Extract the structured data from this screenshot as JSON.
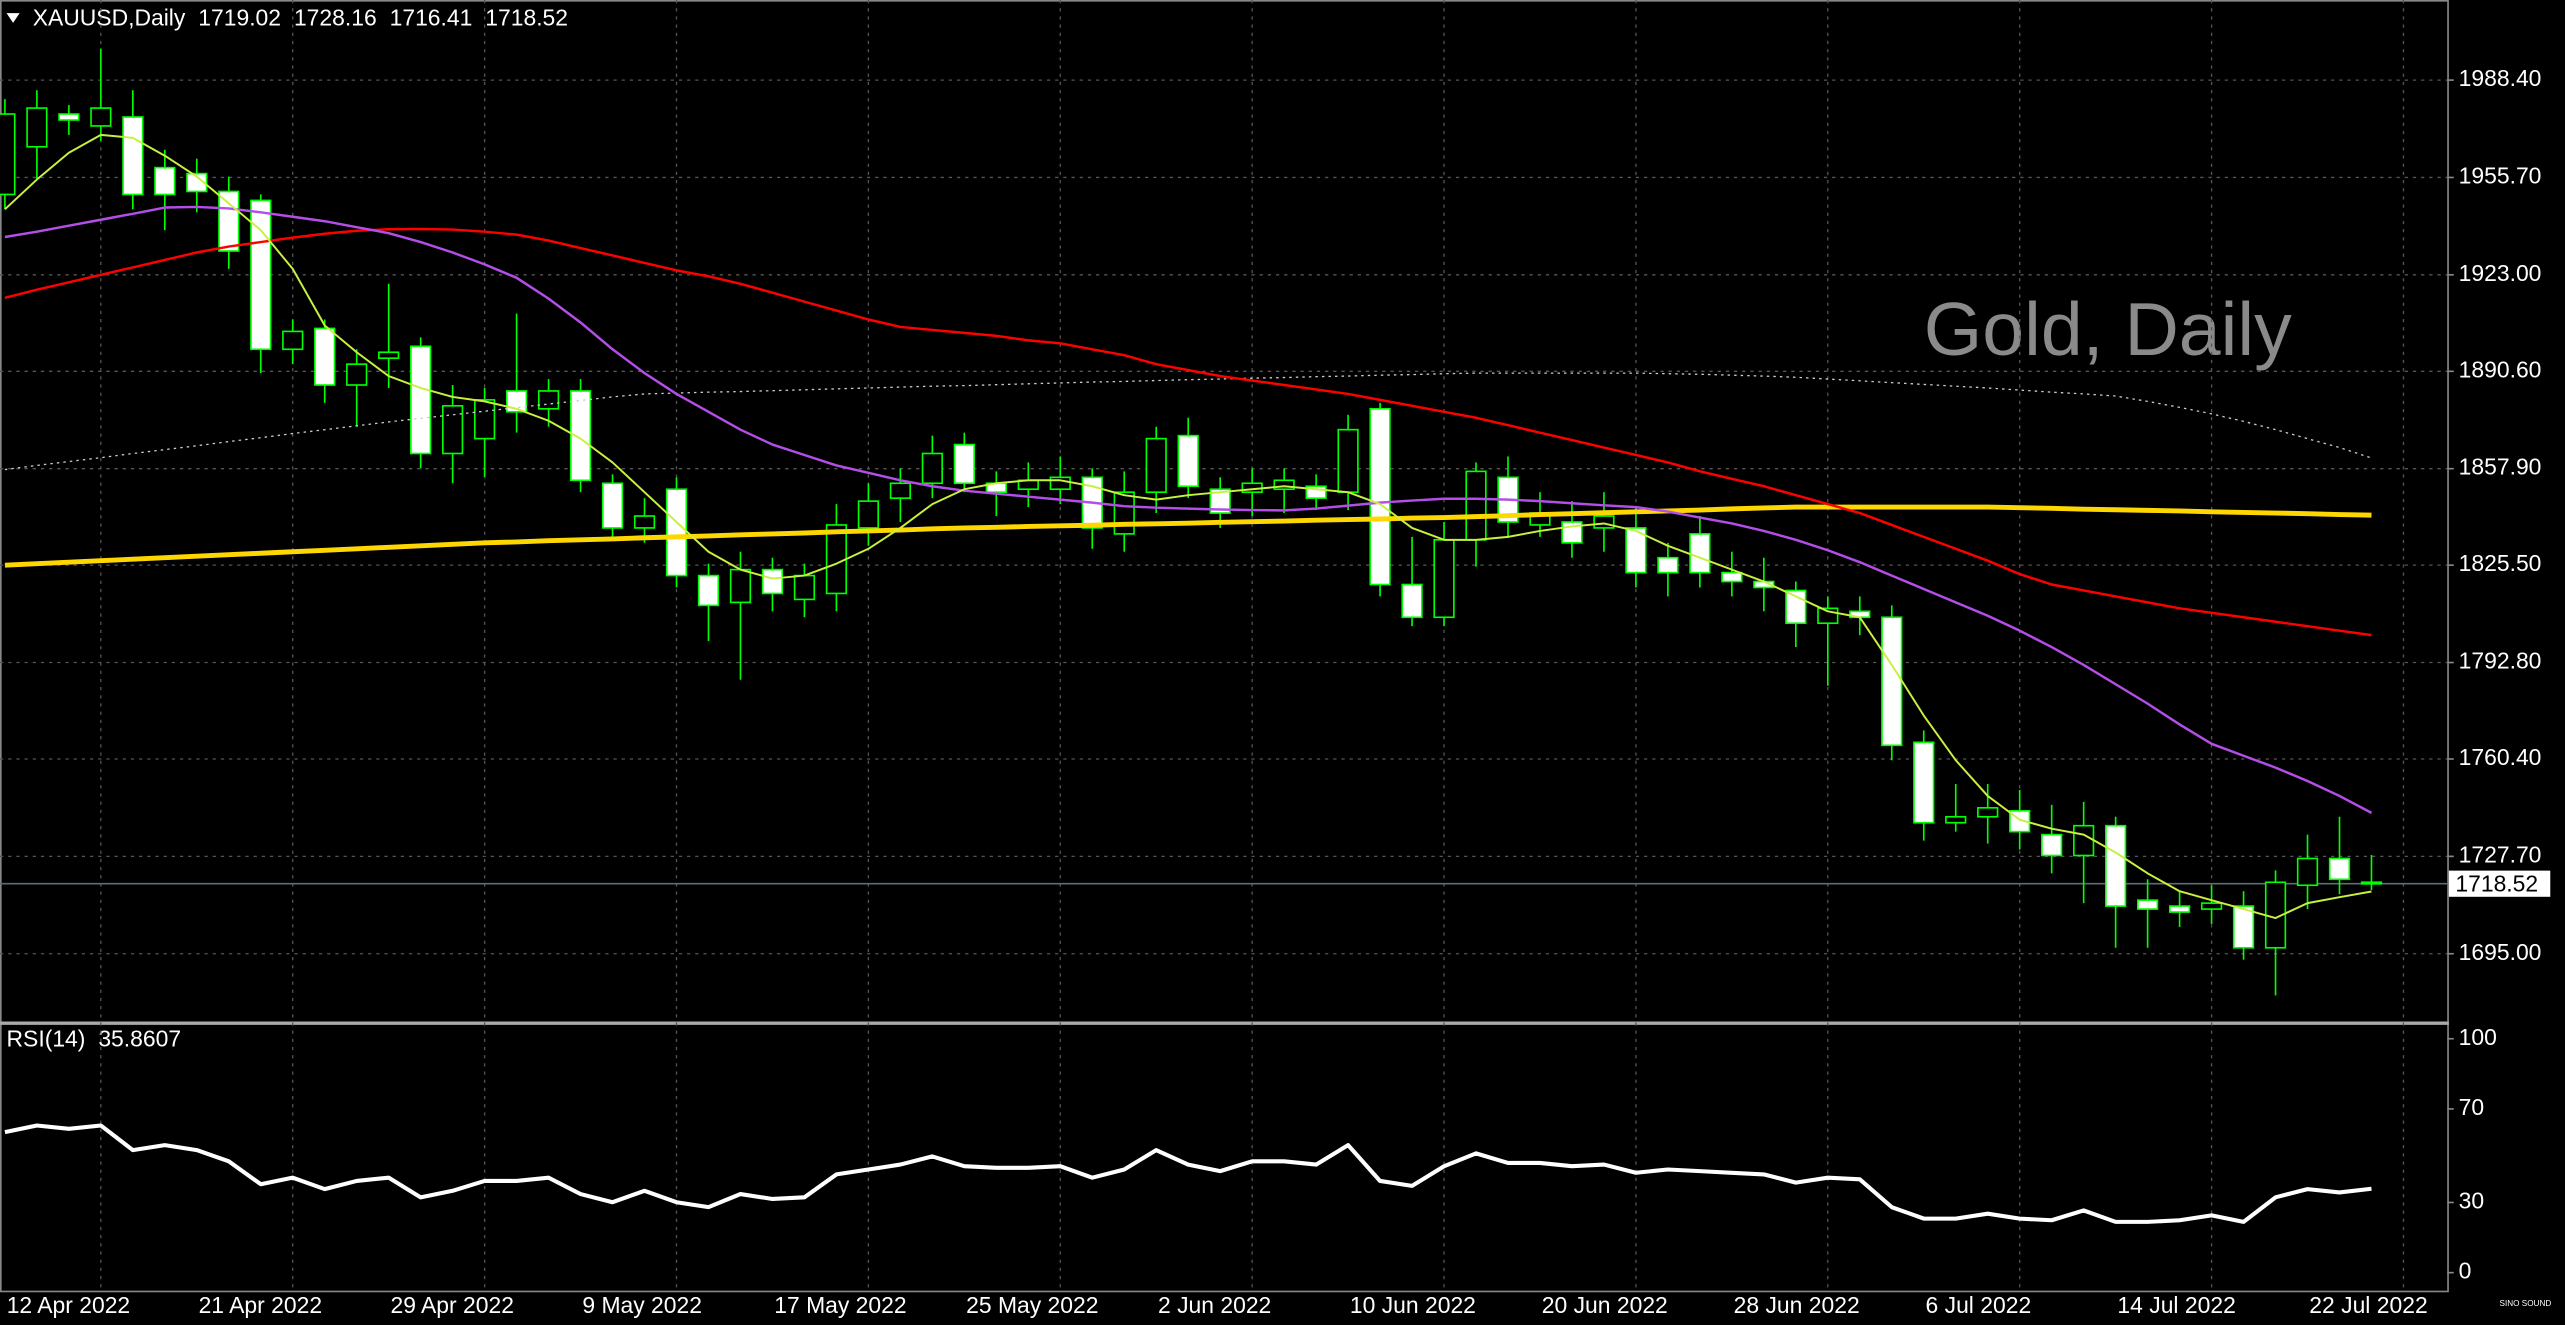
{
  "chart_data": [
    {
      "type": "candlestick",
      "title": "XAUUSD,Daily",
      "watermark": "Gold, Daily",
      "logo": "SINO SOUND",
      "categories": [
        null,
        null,
        "12 Apr 2022",
        null,
        null,
        null,
        null,
        null,
        "21 Apr 2022",
        null,
        null,
        null,
        null,
        null,
        "29 Apr 2022",
        null,
        null,
        null,
        null,
        null,
        "9 May 2022",
        null,
        null,
        null,
        null,
        null,
        "17 May 2022",
        null,
        null,
        null,
        null,
        null,
        "25 May 2022",
        null,
        null,
        null,
        null,
        null,
        "2 Jun 2022",
        null,
        null,
        null,
        null,
        null,
        "10 Jun 2022",
        null,
        null,
        null,
        null,
        null,
        "20 Jun 2022",
        null,
        null,
        null,
        null,
        null,
        "28 Jun 2022",
        null,
        null,
        null,
        null,
        null,
        "6 Jul 2022",
        null,
        null,
        null,
        null,
        null,
        "14 Jul 2022",
        null,
        null,
        null,
        null,
        null,
        "22 Jul 2022"
      ],
      "open": [
        1950,
        1966,
        1977,
        1973,
        1976,
        1959,
        1957,
        1951,
        1948,
        1898,
        1905,
        1886,
        1895,
        1899,
        1863,
        1868,
        1884,
        1878,
        1884,
        1853,
        1838,
        1851,
        1822,
        1813,
        1824,
        1814,
        1816,
        1838,
        1848,
        1853,
        1866,
        1853,
        1851,
        1851,
        1855,
        1836,
        1850,
        1869,
        1851,
        1850,
        1851,
        1852,
        1850,
        1878,
        1819,
        1808,
        1834,
        1855,
        1839,
        1840,
        1838,
        1838,
        1828,
        1836,
        1823,
        1820,
        1817,
        1806,
        1810,
        1808,
        1766,
        1739,
        1741,
        1743,
        1735,
        1728,
        1738,
        1713,
        1711,
        1710,
        1711,
        1697,
        1718,
        1727,
        1719.02
      ],
      "high": [
        1982,
        1985,
        1980,
        1999,
        1985,
        1965,
        1962,
        1956,
        1950,
        1908,
        1908,
        1898,
        1920,
        1902,
        1886,
        1885,
        1910,
        1888,
        1888,
        1856,
        1848,
        1855,
        1826,
        1830,
        1828,
        1826,
        1846,
        1853,
        1858,
        1869,
        1870,
        1857,
        1860,
        1862,
        1858,
        1857,
        1872,
        1875,
        1855,
        1858,
        1858,
        1856,
        1876,
        1880,
        1835,
        1840,
        1860,
        1862,
        1850,
        1847,
        1850,
        1845,
        1833,
        1842,
        1830,
        1828,
        1820,
        1815,
        1815,
        1812,
        1770,
        1752,
        1752,
        1750,
        1745,
        1746,
        1741,
        1720,
        1716,
        1718,
        1716,
        1723,
        1735,
        1741,
        1728.16
      ],
      "low": [
        1945,
        1955,
        1970,
        1968,
        1945,
        1938,
        1944,
        1925,
        1890,
        1893,
        1880,
        1872,
        1885,
        1858,
        1853,
        1855,
        1870,
        1872,
        1850,
        1835,
        1833,
        1818,
        1800,
        1787,
        1810,
        1808,
        1810,
        1832,
        1840,
        1848,
        1850,
        1842,
        1845,
        1846,
        1831,
        1830,
        1843,
        1848,
        1838,
        1842,
        1843,
        1844,
        1844,
        1815,
        1805,
        1805,
        1825,
        1835,
        1835,
        1828,
        1830,
        1818,
        1815,
        1818,
        1815,
        1810,
        1798,
        1785,
        1802,
        1760,
        1733,
        1736,
        1732,
        1730,
        1722,
        1712,
        1697,
        1697,
        1704,
        1705,
        1693,
        1681,
        1710,
        1715,
        1716.41
      ],
      "close": [
        1977,
        1979,
        1975,
        1979,
        1950,
        1950,
        1951,
        1931,
        1898,
        1904,
        1886,
        1893,
        1897,
        1863,
        1879,
        1881,
        1877,
        1884,
        1854,
        1838,
        1842,
        1822,
        1812,
        1824,
        1816,
        1822,
        1839,
        1847,
        1853,
        1863,
        1853,
        1850,
        1854,
        1855,
        1838,
        1850,
        1868,
        1852,
        1843,
        1853,
        1854,
        1848,
        1871,
        1819,
        1808,
        1834,
        1857,
        1840,
        1843,
        1833,
        1842,
        1823,
        1823,
        1823,
        1820,
        1818,
        1806,
        1811,
        1808,
        1765,
        1739,
        1741,
        1744,
        1736,
        1728,
        1738,
        1711,
        1710,
        1709,
        1712,
        1697,
        1719,
        1727,
        1720,
        1718.52
      ],
      "up_color": "#000000",
      "down_color": "#ffffff",
      "wick_color": "#00ff00",
      "price_line_color": "#5a6e78",
      "series": [
        {
          "color": "#cccccc",
          "width": 0.8,
          "dash": true,
          "values": [
            1857.6,
            1859,
            1860.3,
            1861.6,
            1863,
            1864.3,
            1865.6,
            1867,
            1868.3,
            1869.7,
            1871,
            1872.3,
            1873.6,
            1874.8,
            1876,
            1877.2,
            1878.4,
            1879.6,
            1880.8,
            1882,
            1883,
            1883.3,
            1883.6,
            1883.8,
            1884.1,
            1884.4,
            1884.7,
            1885,
            1885.3,
            1885.6,
            1885.8,
            1886.1,
            1886.4,
            1886.7,
            1887,
            1887.2,
            1887.5,
            1887.8,
            1888,
            1888.3,
            1888.5,
            1888.8,
            1889,
            1889.3,
            1889.5,
            1889.8,
            1890,
            1890,
            1890,
            1890,
            1890,
            1890,
            1889.8,
            1889.6,
            1889.3,
            1889,
            1888.6,
            1888,
            1887.4,
            1886.8,
            1886.2,
            1885.6,
            1885,
            1884.3,
            1883.6,
            1883,
            1882.3,
            1880.5,
            1878.5,
            1876.3,
            1873.8,
            1871,
            1868,
            1865,
            1861.5
          ]
        },
        {
          "color": "#ffd700",
          "width": 3,
          "dash": false,
          "values": [
            1825.5,
            1826,
            1826.5,
            1827,
            1827.5,
            1828,
            1828.5,
            1829,
            1829.5,
            1830,
            1830.5,
            1831,
            1831.5,
            1832,
            1832.5,
            1833,
            1833.3,
            1833.7,
            1834,
            1834.3,
            1834.7,
            1835,
            1835.3,
            1835.7,
            1836,
            1836.3,
            1836.7,
            1837,
            1837.3,
            1837.7,
            1838,
            1838.2,
            1838.5,
            1838.7,
            1838.9,
            1839.2,
            1839.4,
            1839.6,
            1839.9,
            1840.1,
            1840.3,
            1840.6,
            1840.8,
            1841,
            1841.3,
            1841.5,
            1841.8,
            1842.1,
            1842.5,
            1842.8,
            1843.1,
            1843.4,
            1843.7,
            1844,
            1844.4,
            1844.7,
            1845,
            1845,
            1845,
            1845,
            1845,
            1845,
            1845,
            1844.8,
            1844.6,
            1844.3,
            1844.1,
            1843.9,
            1843.7,
            1843.4,
            1843.2,
            1843,
            1842.8,
            1842.5,
            1842.3
          ]
        },
        {
          "color": "#ff0000",
          "width": 1.5,
          "dash": false,
          "values": [
            1915.3,
            1918,
            1920.5,
            1923,
            1925.5,
            1928,
            1930.5,
            1932.5,
            1934,
            1935.5,
            1936.8,
            1937.8,
            1938.3,
            1938.4,
            1938.2,
            1937.5,
            1936.5,
            1934.5,
            1932,
            1929.5,
            1927,
            1924.5,
            1922.5,
            1920,
            1917,
            1914,
            1911,
            1908,
            1905.5,
            1904.5,
            1903.5,
            1902.5,
            1901,
            1900,
            1898,
            1896,
            1893,
            1891,
            1889,
            1887.5,
            1886,
            1884.5,
            1883,
            1881,
            1879,
            1877,
            1875,
            1872.5,
            1870,
            1867.5,
            1865,
            1862.5,
            1860,
            1857,
            1854.5,
            1852,
            1849,
            1846,
            1843,
            1839,
            1835,
            1831,
            1827,
            1822.5,
            1819,
            1817,
            1815,
            1813,
            1811,
            1809.5,
            1808,
            1806.5,
            1805,
            1803.5,
            1802
          ]
        },
        {
          "color": "#b44ee8",
          "width": 1.5,
          "dash": false,
          "values": [
            1935.7,
            1937.5,
            1939.5,
            1941.5,
            1943.5,
            1945.6,
            1945.8,
            1945.3,
            1944,
            1942.5,
            1941,
            1939,
            1937,
            1934,
            1930.5,
            1926.5,
            1922,
            1915,
            1907,
            1898,
            1890,
            1883,
            1877,
            1871,
            1866,
            1862.5,
            1859,
            1856.5,
            1854,
            1852,
            1850.5,
            1849.5,
            1848.5,
            1847.5,
            1846.5,
            1845.3,
            1844.8,
            1844.5,
            1844.2,
            1844,
            1843.9,
            1844.5,
            1845.5,
            1846.5,
            1847.2,
            1847.8,
            1847.8,
            1847.5,
            1847,
            1846.3,
            1845.6,
            1845,
            1843.5,
            1841.5,
            1839.5,
            1837,
            1834,
            1830.5,
            1826.5,
            1822,
            1817.5,
            1813,
            1808.5,
            1803.5,
            1798,
            1792,
            1785.5,
            1779,
            1772,
            1765.5,
            1761.5,
            1757.5,
            1753,
            1748,
            1742.3
          ]
        },
        {
          "color": "#c8f040",
          "width": 1.2,
          "dash": false,
          "values": [
            1945,
            1955,
            1964,
            1970,
            1969,
            1963,
            1956,
            1947,
            1938,
            1925,
            1906,
            1897,
            1889,
            1885,
            1882,
            1880.5,
            1878,
            1874,
            1868,
            1860,
            1850,
            1840,
            1830,
            1824,
            1821,
            1822,
            1826,
            1831,
            1838,
            1846,
            1851,
            1853,
            1854,
            1854,
            1852,
            1849,
            1847.5,
            1849,
            1850,
            1851,
            1852,
            1851,
            1850,
            1846,
            1838,
            1834,
            1834,
            1835,
            1837,
            1838.5,
            1839.5,
            1837,
            1832,
            1828,
            1824,
            1820,
            1815,
            1810,
            1808,
            1792,
            1775,
            1760,
            1748,
            1740,
            1737,
            1735,
            1729,
            1722,
            1716,
            1713,
            1710,
            1707,
            1712,
            1714,
            1715.9
          ]
        }
      ],
      "ylim": [
        1672.5,
        2013.1
      ],
      "yticks": [
        {
          "value": 1988.4,
          "label": "1988.40"
        },
        {
          "value": 1955.7,
          "label": "1955.70"
        },
        {
          "value": 1923,
          "label": "1923.00"
        },
        {
          "value": 1890.6,
          "label": "1890.60"
        },
        {
          "value": 1857.9,
          "label": "1857.90"
        },
        {
          "value": 1825.5,
          "label": "1825.50"
        },
        {
          "value": 1792.8,
          "label": "1792.80"
        },
        {
          "value": 1760.4,
          "label": "1760.40"
        },
        {
          "value": 1727.7,
          "label": "1727.70"
        },
        {
          "value": 1695,
          "label": "1695.00"
        }
      ],
      "grid": true
    },
    {
      "type": "line",
      "title": "RSI(14)",
      "series": [
        {
          "color": "#ffffff",
          "width": 2.5,
          "values": [
            60.1,
            62.9,
            61.5,
            62.9,
            52.4,
            54.5,
            52.4,
            47.6,
            37.8,
            40.6,
            35.7,
            39.2,
            40.6,
            32.2,
            35,
            39.2,
            39.2,
            40.6,
            33.6,
            30.1,
            35,
            30.1,
            28,
            33.6,
            31.5,
            32.2,
            42,
            44.1,
            46.2,
            49.7,
            45.5,
            44.8,
            44.8,
            45.5,
            40.6,
            44.1,
            52.4,
            46.2,
            43.4,
            47.6,
            47.6,
            46.2,
            54.5,
            39.2,
            37.1,
            45.5,
            51,
            46.9,
            46.9,
            45.5,
            46.2,
            42.7,
            44.1,
            43.4,
            42.7,
            42,
            38.5,
            40.6,
            39.9,
            28,
            23.1,
            23.1,
            25.2,
            23.1,
            22.4,
            26.6,
            21.7,
            21.7,
            22.4,
            24.5,
            21.7,
            32.2,
            35.7,
            34.3,
            35.8607
          ]
        }
      ],
      "ylim": [
        -8.4,
        105.6
      ],
      "yticks": [
        100,
        70,
        30,
        0
      ]
    }
  ]
}
